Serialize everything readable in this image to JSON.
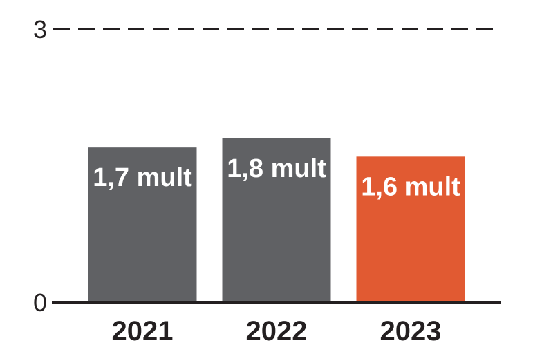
{
  "chart_data": {
    "type": "bar",
    "categories": [
      "2021",
      "2022",
      "2023"
    ],
    "values": [
      1.7,
      1.8,
      1.6
    ],
    "value_labels": [
      "1,7 mult",
      "1,8 mult",
      "1,6 mult"
    ],
    "bar_colors": [
      "#606164",
      "#606164",
      "#e15a32"
    ],
    "ylim": [
      0,
      3
    ],
    "y_ticks": [
      {
        "value": 0,
        "label": "0"
      },
      {
        "value": 3,
        "label": "3"
      }
    ],
    "grid": "dashed line at top tick only",
    "title": "",
    "xlabel": "",
    "ylabel": ""
  },
  "colors": {
    "axis": "#231f20",
    "text": "#231f20",
    "value_text": "#ffffff"
  }
}
